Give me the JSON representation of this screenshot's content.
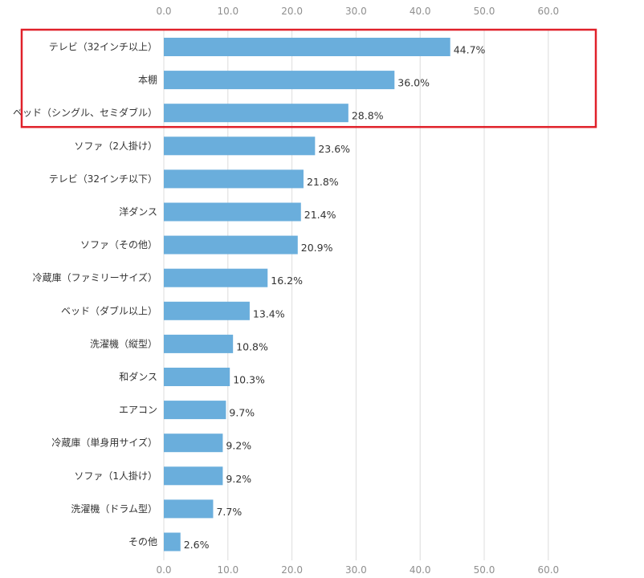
{
  "chart_data": {
    "type": "bar",
    "orientation": "horizontal",
    "categories": [
      "テレビ（32インチ以上）",
      "本棚",
      "ベッド（シングル、セミダブル）",
      "ソファ（2人掛け）",
      "テレビ（32インチ以下）",
      "洋ダンス",
      "ソファ（その他）",
      "冷蔵庫（ファミリーサイズ）",
      "ベッド（ダブル以上）",
      "洗濯機（縦型）",
      "和ダンス",
      "エアコン",
      "冷蔵庫（単身用サイズ）",
      "ソファ（1人掛け）",
      "洗濯機（ドラム型）",
      "その他"
    ],
    "values": [
      44.7,
      36.0,
      28.8,
      23.6,
      21.8,
      21.4,
      20.9,
      16.2,
      13.4,
      10.8,
      10.3,
      9.7,
      9.2,
      9.2,
      7.7,
      2.6
    ],
    "value_labels": [
      "44.7%",
      "36.0%",
      "28.8%",
      "23.6%",
      "21.8%",
      "21.4%",
      "20.9%",
      "16.2%",
      "13.4%",
      "10.8%",
      "10.3%",
      "9.7%",
      "9.2%",
      "9.2%",
      "7.7%",
      "2.6%"
    ],
    "xlim": [
      0,
      60
    ],
    "ticks": [
      "0.0",
      "10.0",
      "20.0",
      "30.0",
      "40.0",
      "50.0",
      "60.0"
    ],
    "tick_values": [
      0,
      10,
      20,
      30,
      40,
      50,
      60
    ],
    "title": "",
    "xlabel": "",
    "ylabel": "",
    "grid": true,
    "highlight": {
      "first_index": 0,
      "last_index": 2
    },
    "colors": {
      "bar": "#6aaedc",
      "grid": "#dcdcdc",
      "highlight": "#e0212a"
    }
  }
}
